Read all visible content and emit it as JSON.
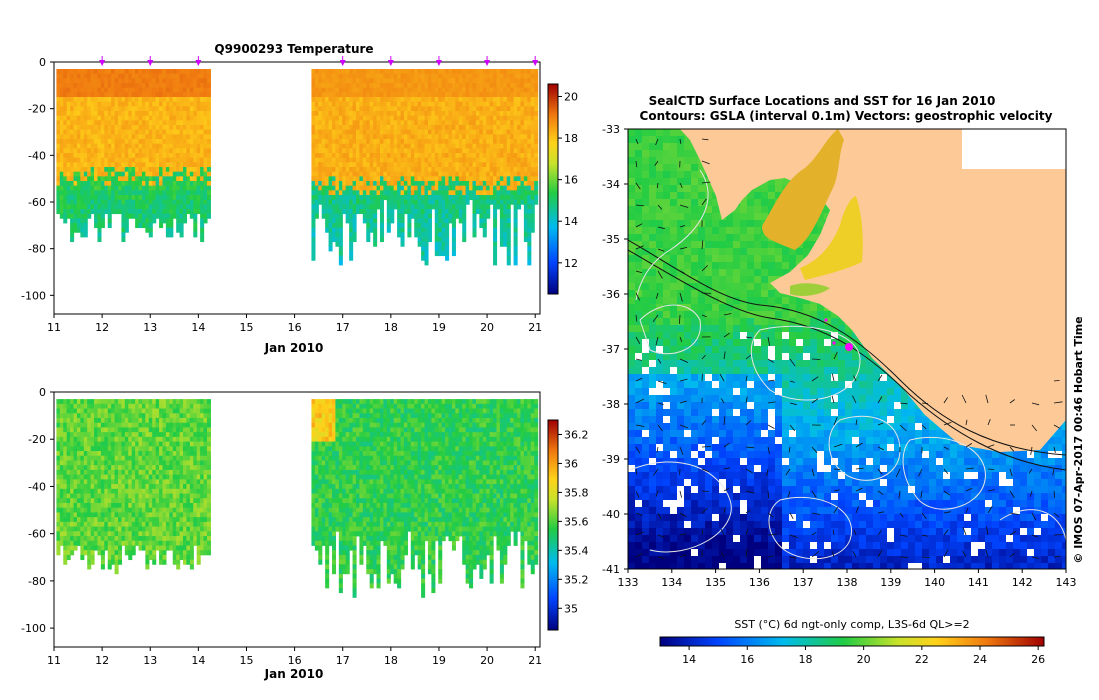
{
  "chart_data": [
    {
      "type": "heatmap",
      "title": "Q9900293  Temperature",
      "xlabel": "Jan 2010",
      "ylabel": "",
      "xlim": [
        11,
        21.1
      ],
      "ylim": [
        -108,
        0
      ],
      "x_ticks": [
        11,
        12,
        13,
        14,
        15,
        16,
        17,
        18,
        19,
        20,
        21
      ],
      "y_ticks": [
        0,
        -20,
        -40,
        -60,
        -80,
        -100
      ],
      "colorbar": {
        "min": 10.5,
        "max": 20.6,
        "ticks": [
          20,
          18,
          16,
          14,
          12
        ]
      },
      "profile_markers": [
        12.0,
        13.0,
        14.0,
        17.0,
        18.0,
        19.0,
        20.0,
        21.0
      ],
      "segments": [
        {
          "x": [
            11.05,
            14.25
          ],
          "top_layer_value": 19.2,
          "mid_layer_value": 18.2,
          "thermocline_depth": -48,
          "deep_value": 15.3,
          "bottom_depth_range": [
            -64,
            -76
          ]
        },
        {
          "x": [
            16.35,
            21.05
          ],
          "top_layer_value": 18.8,
          "mid_layer_value": 18.3,
          "thermocline_depth": -52,
          "deep_value": 14.9,
          "bottom_depth_range": [
            -58,
            -87
          ]
        }
      ]
    },
    {
      "type": "heatmap",
      "title": "",
      "xlabel": "Jan 2010",
      "ylabel": "",
      "xlim": [
        11,
        21.1
      ],
      "ylim": [
        -108,
        0
      ],
      "x_ticks": [
        11,
        12,
        13,
        14,
        15,
        16,
        17,
        18,
        19,
        20,
        21
      ],
      "y_ticks": [
        0,
        -20,
        -40,
        -60,
        -80,
        -100
      ],
      "colorbar": {
        "min": 34.85,
        "max": 36.3,
        "ticks": [
          36.2,
          36,
          35.8,
          35.6,
          35.4,
          35.2,
          35
        ]
      },
      "segments": [
        {
          "x": [
            11.05,
            14.25
          ],
          "typical_value": 35.62,
          "bottom_depth_range": [
            -64,
            -76
          ]
        },
        {
          "x": [
            16.35,
            21.05
          ],
          "typical_value": 35.55,
          "bottom_depth_range": [
            -58,
            -87
          ]
        }
      ]
    },
    {
      "type": "heatmap",
      "title": "SealCTD Surface Locations and SST for 16 Jan 2010",
      "subtitle": "Contours: GSLA (interval 0.1m) Vectors: geostrophic velocity",
      "xlabel": "",
      "ylabel": "",
      "xlim": [
        133,
        143
      ],
      "ylim": [
        -41,
        -33
      ],
      "x_ticks": [
        133,
        134,
        135,
        136,
        137,
        138,
        139,
        140,
        141,
        142,
        143
      ],
      "y_ticks": [
        -33,
        -34,
        -35,
        -36,
        -37,
        -38,
        -39,
        -40,
        -41
      ],
      "colorbar": {
        "label": "SST (°C) 6d ngt-only comp, L3S-6d QL>=2",
        "min": 13,
        "max": 26.2,
        "ticks": [
          14,
          16,
          18,
          20,
          22,
          24,
          26
        ]
      },
      "seal_location": {
        "lon": 138.05,
        "lat": -36.95
      },
      "side_label": "© IMOS 07-Apr-2017 00:46 Hobart Time"
    }
  ]
}
